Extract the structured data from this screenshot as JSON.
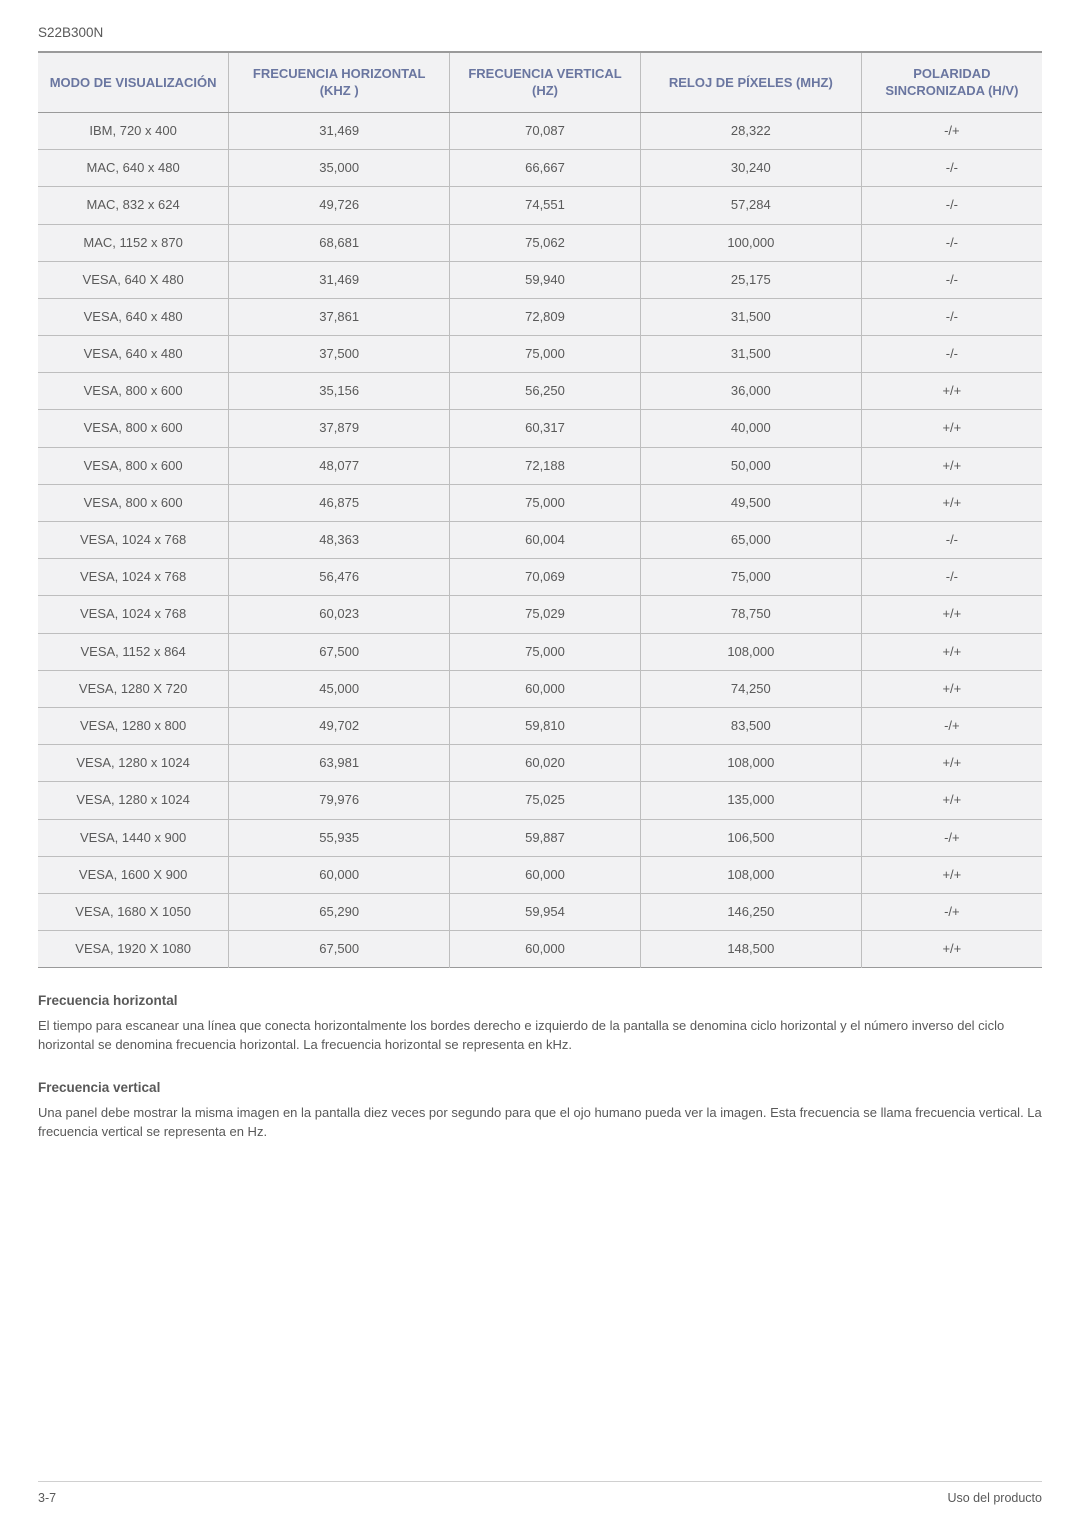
{
  "model": "S22B300N",
  "table": {
    "columns": [
      "MODO DE VISUALIZACIÓN",
      "FRECUENCIA HORIZONTAL (KHZ )",
      "FRECUENCIA VERTICAL (HZ)",
      "RELOJ DE PÍXELES (MHZ)",
      "POLARIDAD SINCRONIZADA (H/V)"
    ],
    "col_widths": [
      "19%",
      "22%",
      "19%",
      "22%",
      "18%"
    ],
    "header_bg": "#f2f2f3",
    "header_color": "#6a76a0",
    "row_bg": "#f2f2f3",
    "border_color": "#bebebe",
    "outer_border_color": "#9a9a9a",
    "text_color": "#595959",
    "rows": [
      [
        "IBM, 720 x 400",
        "31,469",
        "70,087",
        "28,322",
        "-/+"
      ],
      [
        "MAC, 640 x 480",
        "35,000",
        "66,667",
        "30,240",
        "-/-"
      ],
      [
        "MAC, 832 x 624",
        "49,726",
        "74,551",
        "57,284",
        "-/-"
      ],
      [
        "MAC, 1152 x 870",
        "68,681",
        "75,062",
        "100,000",
        "-/-"
      ],
      [
        "VESA, 640 X 480",
        "31,469",
        "59,940",
        "25,175",
        "-/-"
      ],
      [
        "VESA, 640 x 480",
        "37,861",
        "72,809",
        "31,500",
        "-/-"
      ],
      [
        "VESA, 640 x 480",
        "37,500",
        "75,000",
        "31,500",
        "-/-"
      ],
      [
        "VESA, 800 x 600",
        "35,156",
        "56,250",
        "36,000",
        "+/+"
      ],
      [
        "VESA, 800 x 600",
        "37,879",
        "60,317",
        "40,000",
        "+/+"
      ],
      [
        "VESA, 800 x 600",
        "48,077",
        "72,188",
        "50,000",
        "+/+"
      ],
      [
        "VESA, 800 x 600",
        "46,875",
        "75,000",
        "49,500",
        "+/+"
      ],
      [
        "VESA, 1024 x 768",
        "48,363",
        "60,004",
        "65,000",
        "-/-"
      ],
      [
        "VESA, 1024 x 768",
        "56,476",
        "70,069",
        "75,000",
        "-/-"
      ],
      [
        "VESA, 1024 x 768",
        "60,023",
        "75,029",
        "78,750",
        "+/+"
      ],
      [
        "VESA, 1152 x 864",
        "67,500",
        "75,000",
        "108,000",
        "+/+"
      ],
      [
        "VESA, 1280 X 720",
        "45,000",
        "60,000",
        "74,250",
        "+/+"
      ],
      [
        "VESA, 1280 x 800",
        "49,702",
        "59,810",
        "83,500",
        "-/+"
      ],
      [
        "VESA, 1280 x 1024",
        "63,981",
        "60,020",
        "108,000",
        "+/+"
      ],
      [
        "VESA, 1280 x 1024",
        "79,976",
        "75,025",
        "135,000",
        "+/+"
      ],
      [
        "VESA, 1440 x 900",
        "55,935",
        "59,887",
        "106,500",
        "-/+"
      ],
      [
        "VESA, 1600 X 900",
        "60,000",
        "60,000",
        "108,000",
        "+/+"
      ],
      [
        "VESA, 1680 X 1050",
        "65,290",
        "59,954",
        "146,250",
        "-/+"
      ],
      [
        "VESA, 1920 X 1080",
        "67,500",
        "60,000",
        "148,500",
        "+/+"
      ]
    ]
  },
  "sections": {
    "horizontal": {
      "title": "Frecuencia horizontal",
      "body": "El tiempo para escanear una línea que conecta horizontalmente los bordes derecho e izquierdo de la pantalla se denomina ciclo horizontal y el número inverso del ciclo horizontal se denomina frecuencia horizontal. La frecuencia horizontal se representa en kHz."
    },
    "vertical": {
      "title": "Frecuencia vertical",
      "body": "Una panel debe mostrar la misma imagen en la pantalla diez veces por segundo para que el ojo humano pueda ver la imagen. Esta frecuencia se llama frecuencia vertical. La frecuencia vertical se representa en Hz."
    }
  },
  "footer": {
    "left": "3-7",
    "right": "Uso del producto"
  }
}
